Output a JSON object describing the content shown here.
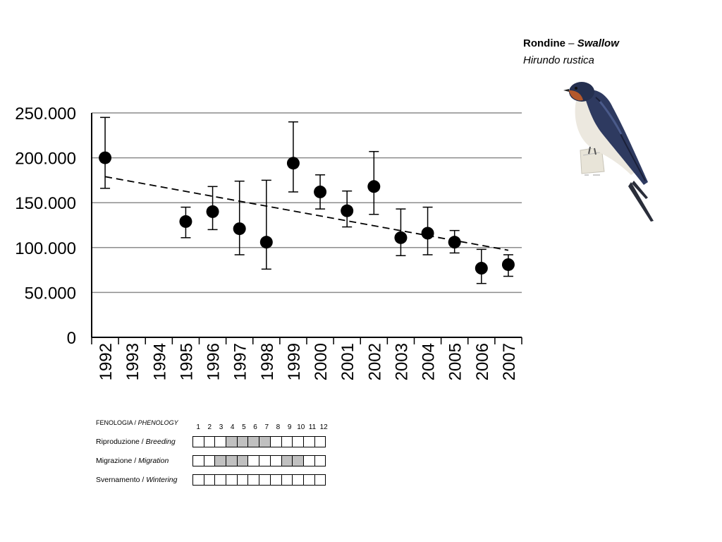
{
  "species": {
    "name_it": "Rondine",
    "separator": "–",
    "name_en": "Swallow",
    "latin": "Hirundo rustica"
  },
  "chart_data": {
    "type": "scatter",
    "categories": [
      "1992",
      "1993",
      "1994",
      "1995",
      "1996",
      "1997",
      "1998",
      "1999",
      "2000",
      "2001",
      "2002",
      "2003",
      "2004",
      "2005",
      "2006",
      "2007"
    ],
    "y_ticks": [
      "0",
      "50.000",
      "100.000",
      "150.000",
      "200.000",
      "250.000"
    ],
    "ylim": [
      0,
      250000
    ],
    "grid": true,
    "series": [
      {
        "type": "points_with_error_bars",
        "points": [
          {
            "x": "1992",
            "y": 200000,
            "low": 166000,
            "high": 245000
          },
          {
            "x": "1995",
            "y": 129000,
            "low": 111000,
            "high": 145000
          },
          {
            "x": "1996",
            "y": 140000,
            "low": 120000,
            "high": 168000
          },
          {
            "x": "1997",
            "y": 121000,
            "low": 92000,
            "high": 174000
          },
          {
            "x": "1998",
            "y": 106000,
            "low": 76000,
            "high": 175000
          },
          {
            "x": "1999",
            "y": 194000,
            "low": 162000,
            "high": 240000
          },
          {
            "x": "2000",
            "y": 162000,
            "low": 143000,
            "high": 181000
          },
          {
            "x": "2001",
            "y": 141000,
            "low": 123000,
            "high": 163000
          },
          {
            "x": "2002",
            "y": 168000,
            "low": 137000,
            "high": 207000
          },
          {
            "x": "2003",
            "y": 111000,
            "low": 91000,
            "high": 143000
          },
          {
            "x": "2004",
            "y": 116000,
            "low": 92000,
            "high": 145000
          },
          {
            "x": "2005",
            "y": 106000,
            "low": 94000,
            "high": 119000
          },
          {
            "x": "2006",
            "y": 77000,
            "low": 60000,
            "high": 98000
          },
          {
            "x": "2007",
            "y": 81000,
            "low": 68000,
            "high": 92000
          }
        ]
      },
      {
        "type": "trend_dashed",
        "start": {
          "x": "1992",
          "y": 179000
        },
        "end": {
          "x": "2007",
          "y": 97000
        }
      }
    ]
  },
  "phenology": {
    "title_it": "FENOLOGIA",
    "title_sep": "/",
    "title_en": "PHENOLOGY",
    "months": [
      "1",
      "2",
      "3",
      "4",
      "5",
      "6",
      "7",
      "8",
      "9",
      "10",
      "11",
      "12"
    ],
    "rows": [
      {
        "label_it": "Riproduzione",
        "sep": "/",
        "label_en": "Breeding",
        "active": [
          4,
          5,
          6,
          7
        ]
      },
      {
        "label_it": "Migrazione",
        "sep": "/",
        "label_en": "Migration",
        "active": [
          3,
          4,
          5,
          9,
          10
        ]
      },
      {
        "label_it": "Svernamento",
        "sep": "/",
        "label_en": "Wintering",
        "active": []
      }
    ],
    "active_color": "#c0c0c0"
  }
}
